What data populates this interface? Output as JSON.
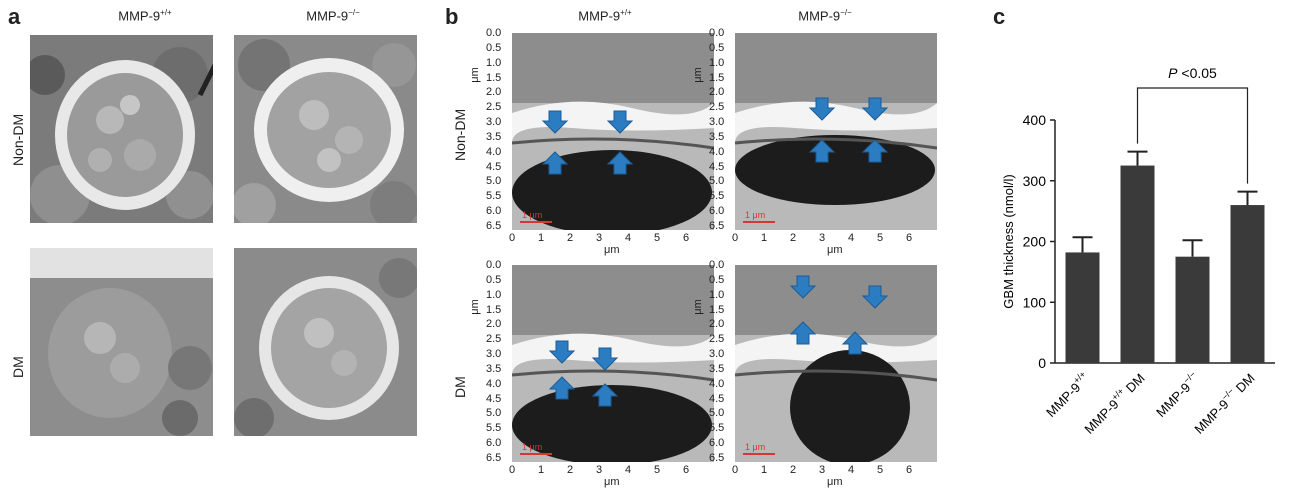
{
  "panel_a": {
    "letter": "a",
    "col1": "MMP-9",
    "col1_sup": "+/+",
    "col2": "MMP-9",
    "col2_sup": "−/−",
    "row1": "Non-DM",
    "row2": "DM"
  },
  "panel_b": {
    "letter": "b",
    "col1": "MMP-9",
    "col1_sup": "+/+",
    "col2": "MMP-9",
    "col2_sup": "−/−",
    "row1": "Non-DM",
    "row2": "DM",
    "axis_unit": "μm",
    "y_ticks": [
      "0.0",
      "0.5",
      "1.0",
      "1.5",
      "2.0",
      "2.5",
      "3.0",
      "3.5",
      "4.0",
      "4.5",
      "5.0",
      "5.5",
      "6.0",
      "6.5"
    ],
    "x_ticks": [
      "0",
      "1",
      "2",
      "3",
      "4",
      "5",
      "6"
    ],
    "scale_bar": "1 μm"
  },
  "panel_c": {
    "letter": "c",
    "significance": "P <0.05",
    "significance_p": "P",
    "significance_rest": " <0.05",
    "chart_data": {
      "type": "bar",
      "categories": [
        "MMP-9+/+",
        "MMP-9+/+ DM",
        "MMP-9−/−",
        "MMP-9−/− DM"
      ],
      "category_parts": [
        {
          "base": "MMP-9",
          "sup": "+/+",
          "suffix": ""
        },
        {
          "base": "MMP-9",
          "sup": "+/+",
          "suffix": " DM"
        },
        {
          "base": "MMP-9",
          "sup": "−/−",
          "suffix": ""
        },
        {
          "base": "MMP-9",
          "sup": "−/−",
          "suffix": " DM"
        }
      ],
      "values": [
        182,
        325,
        175,
        260
      ],
      "errors": [
        25,
        23,
        27,
        22
      ],
      "ylabel": "GBM thickness (nmol/l)",
      "ylim": [
        0,
        400
      ],
      "y_ticks": [
        0,
        100,
        200,
        300,
        400
      ],
      "bar_color": "#3a3a3a",
      "grid": false
    }
  }
}
